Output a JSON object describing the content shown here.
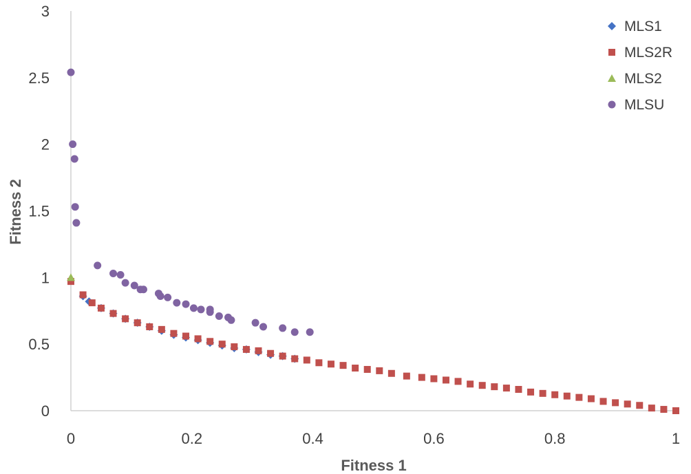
{
  "chart_data": {
    "type": "scatter",
    "title": "",
    "xlabel": "Fitness 1",
    "ylabel": "Fitness 2",
    "xlim": [
      0,
      1
    ],
    "ylim": [
      0,
      3
    ],
    "xticks": [
      "0",
      "0.2",
      "0.4",
      "0.6",
      "0.8",
      "1"
    ],
    "yticks": [
      "0",
      "0.5",
      "1",
      "1.5",
      "2",
      "2.5",
      "3"
    ],
    "grid": false,
    "legend_position": "top-right",
    "series": [
      {
        "name": "MLS1",
        "marker": "diamond",
        "color": "#4472C4",
        "points": [
          [
            0.02,
            0.86
          ],
          [
            0.03,
            0.82
          ],
          [
            0.05,
            0.77
          ],
          [
            0.07,
            0.73
          ],
          [
            0.09,
            0.69
          ],
          [
            0.11,
            0.66
          ],
          [
            0.13,
            0.63
          ],
          [
            0.15,
            0.6
          ],
          [
            0.17,
            0.57
          ],
          [
            0.19,
            0.55
          ],
          [
            0.21,
            0.53
          ],
          [
            0.23,
            0.51
          ],
          [
            0.25,
            0.49
          ],
          [
            0.27,
            0.47
          ],
          [
            0.29,
            0.46
          ],
          [
            0.31,
            0.44
          ],
          [
            0.33,
            0.42
          ],
          [
            0.35,
            0.41
          ],
          [
            0.37,
            0.39
          ]
        ]
      },
      {
        "name": "MLS2R",
        "marker": "square",
        "color": "#C0504D",
        "points": [
          [
            0.0,
            0.97
          ],
          [
            0.02,
            0.87
          ],
          [
            0.035,
            0.81
          ],
          [
            0.05,
            0.77
          ],
          [
            0.07,
            0.73
          ],
          [
            0.09,
            0.69
          ],
          [
            0.11,
            0.66
          ],
          [
            0.13,
            0.63
          ],
          [
            0.15,
            0.61
          ],
          [
            0.17,
            0.58
          ],
          [
            0.19,
            0.56
          ],
          [
            0.21,
            0.54
          ],
          [
            0.23,
            0.52
          ],
          [
            0.25,
            0.5
          ],
          [
            0.27,
            0.48
          ],
          [
            0.29,
            0.46
          ],
          [
            0.31,
            0.45
          ],
          [
            0.33,
            0.43
          ],
          [
            0.35,
            0.41
          ],
          [
            0.37,
            0.39
          ],
          [
            0.39,
            0.38
          ],
          [
            0.41,
            0.36
          ],
          [
            0.43,
            0.35
          ],
          [
            0.45,
            0.34
          ],
          [
            0.47,
            0.32
          ],
          [
            0.49,
            0.31
          ],
          [
            0.51,
            0.3
          ],
          [
            0.53,
            0.28
          ],
          [
            0.555,
            0.26
          ],
          [
            0.58,
            0.25
          ],
          [
            0.6,
            0.24
          ],
          [
            0.62,
            0.23
          ],
          [
            0.64,
            0.22
          ],
          [
            0.66,
            0.2
          ],
          [
            0.68,
            0.19
          ],
          [
            0.7,
            0.18
          ],
          [
            0.72,
            0.17
          ],
          [
            0.74,
            0.16
          ],
          [
            0.76,
            0.14
          ],
          [
            0.78,
            0.13
          ],
          [
            0.8,
            0.12
          ],
          [
            0.82,
            0.11
          ],
          [
            0.84,
            0.1
          ],
          [
            0.86,
            0.09
          ],
          [
            0.88,
            0.07
          ],
          [
            0.9,
            0.06
          ],
          [
            0.92,
            0.05
          ],
          [
            0.94,
            0.04
          ],
          [
            0.96,
            0.02
          ],
          [
            0.98,
            0.01
          ],
          [
            1.0,
            0.0
          ]
        ]
      },
      {
        "name": "MLS2",
        "marker": "triangle",
        "color": "#9BBB59",
        "points": [
          [
            0.0,
            1.0
          ]
        ]
      },
      {
        "name": "MLSU",
        "marker": "circle",
        "color": "#8064A2",
        "points": [
          [
            0.0,
            2.54
          ],
          [
            0.003,
            2.0
          ],
          [
            0.006,
            1.89
          ],
          [
            0.007,
            1.53
          ],
          [
            0.009,
            1.41
          ],
          [
            0.044,
            1.09
          ],
          [
            0.07,
            1.03
          ],
          [
            0.082,
            1.02
          ],
          [
            0.09,
            0.96
          ],
          [
            0.105,
            0.94
          ],
          [
            0.115,
            0.91
          ],
          [
            0.12,
            0.91
          ],
          [
            0.145,
            0.88
          ],
          [
            0.148,
            0.86
          ],
          [
            0.16,
            0.85
          ],
          [
            0.175,
            0.81
          ],
          [
            0.19,
            0.8
          ],
          [
            0.203,
            0.77
          ],
          [
            0.215,
            0.76
          ],
          [
            0.23,
            0.76
          ],
          [
            0.23,
            0.74
          ],
          [
            0.245,
            0.71
          ],
          [
            0.26,
            0.7
          ],
          [
            0.265,
            0.68
          ],
          [
            0.305,
            0.66
          ],
          [
            0.318,
            0.63
          ],
          [
            0.35,
            0.62
          ],
          [
            0.37,
            0.59
          ],
          [
            0.395,
            0.59
          ]
        ]
      }
    ]
  }
}
